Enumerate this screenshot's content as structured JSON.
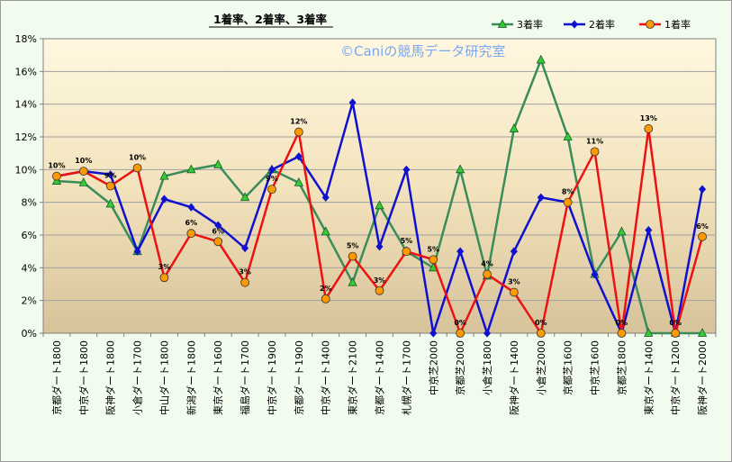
{
  "chart_data": {
    "type": "line",
    "title": "1着率、2着率、3着率",
    "watermark": "©Caniの競馬データ研究室",
    "ylim": [
      0,
      18
    ],
    "y_ticks": [
      "0%",
      "2%",
      "4%",
      "6%",
      "8%",
      "10%",
      "12%",
      "14%",
      "16%",
      "18%"
    ],
    "grid": "horizontal",
    "legend_position": "top-right",
    "categories": [
      "京都ダート1800",
      "中京ダート1800",
      "阪神ダート1800",
      "小倉ダート1700",
      "中山ダート1800",
      "新潟ダート1800",
      "東京ダート1600",
      "福島ダート1700",
      "中京ダート1900",
      "京都ダート1900",
      "中京ダート1400",
      "東京ダート2100",
      "京都ダート1400",
      "札幌ダート1700",
      "中京芝2000",
      "京都芝2000",
      "小倉芝1800",
      "阪神ダート1400",
      "小倉芝2000",
      "京都芝1600",
      "中京芝1600",
      "京都芝1800",
      "東京ダート1400",
      "中京ダート1200",
      "阪神ダート2000"
    ],
    "series": [
      {
        "name": "3着率",
        "color": "#3a8c5a",
        "marker": "triangle",
        "marker_fill": "#33cc33",
        "values": [
          9.3,
          9.2,
          7.9,
          5.0,
          9.6,
          10.0,
          10.3,
          8.3,
          10.0,
          9.2,
          6.2,
          3.1,
          7.8,
          5.0,
          4.0,
          10.0,
          3.5,
          12.5,
          16.7,
          12.0,
          3.6,
          6.2,
          0.0,
          0.0,
          0.0
        ]
      },
      {
        "name": "2着率",
        "color": "#1010d0",
        "marker": "diamond",
        "marker_fill": "#1010d0",
        "values": [
          9.6,
          9.9,
          9.7,
          5.0,
          8.2,
          7.7,
          6.6,
          5.2,
          10.0,
          10.8,
          8.3,
          14.1,
          5.3,
          10.0,
          0.0,
          5.0,
          0.0,
          5.0,
          8.3,
          8.0,
          3.6,
          0.0,
          6.3,
          0.0,
          8.8
        ]
      },
      {
        "name": "1着率",
        "color": "#ee1111",
        "marker": "circle",
        "marker_fill": "#ff9900",
        "values": [
          9.6,
          9.9,
          9.0,
          10.1,
          3.4,
          6.1,
          5.6,
          3.1,
          8.8,
          12.3,
          2.1,
          4.7,
          2.6,
          5.0,
          4.5,
          0.0,
          3.6,
          2.5,
          0.0,
          8.0,
          11.1,
          0.0,
          12.5,
          0.0,
          5.9
        ],
        "data_labels": [
          "10%",
          "10%",
          "9%",
          "10%",
          "3%",
          "6%",
          "6%",
          "3%",
          "9%",
          "12%",
          "2%",
          "5%",
          "3%",
          "5%",
          "5%",
          "0%",
          "4%",
          "3%",
          "0%",
          "8%",
          "11%",
          "0%",
          "13%",
          "0%",
          "6%"
        ]
      }
    ]
  }
}
